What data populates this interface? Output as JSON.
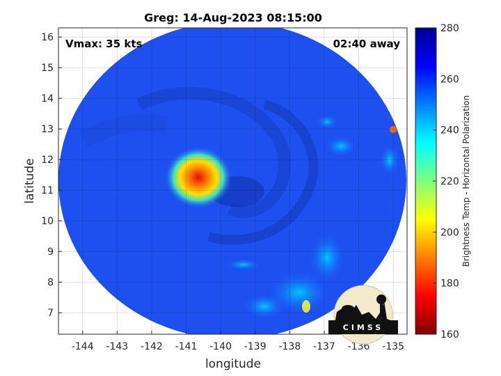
{
  "chart_data": {
    "type": "heatmap",
    "title": "Greg: 14-Aug-2023 08:15:00",
    "xlabel": "longitude",
    "ylabel": "latitude",
    "xlim": [
      -144.7,
      -134.6
    ],
    "ylim": [
      6.3,
      16.3
    ],
    "x_ticks": [
      "-144",
      "-143",
      "-142",
      "-141",
      "-140",
      "-139",
      "-138",
      "-137",
      "-136",
      "-135"
    ],
    "y_ticks": [
      "7",
      "8",
      "9",
      "10",
      "11",
      "12",
      "13",
      "14",
      "15",
      "16"
    ],
    "grid": true,
    "annotations": {
      "vmax": "Vmax: 35 kts",
      "time_offset": "02:40 away"
    },
    "colorbar": {
      "label": "Brightness Temp - Horizontal Polarization",
      "range": [
        160,
        280
      ],
      "ticks": [
        "280",
        "260",
        "240",
        "220",
        "200",
        "180",
        "160"
      ],
      "colormap": "jet"
    },
    "features": {
      "background_value_approx": 262,
      "cold_core": {
        "lon": -140.8,
        "lat": 11.4,
        "min_value_approx": 185
      },
      "swath_center": {
        "lon": -139.6,
        "lat": 11.3
      }
    }
  },
  "logo": {
    "text": "CIMSS"
  }
}
